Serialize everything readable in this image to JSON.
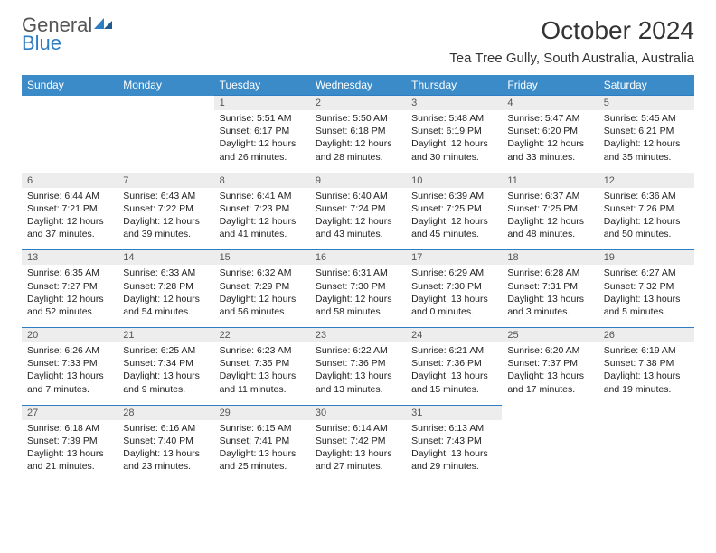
{
  "logo": {
    "text1": "General",
    "text2": "Blue"
  },
  "title": "October 2024",
  "location": "Tea Tree Gully, South Australia, Australia",
  "weekdays": [
    "Sunday",
    "Monday",
    "Tuesday",
    "Wednesday",
    "Thursday",
    "Friday",
    "Saturday"
  ],
  "colors": {
    "headerBg": "#3b8bc9",
    "dayBg": "#ededed",
    "accent": "#2e7cc2"
  },
  "weeks": [
    [
      null,
      null,
      {
        "n": "1",
        "sunrise": "5:51 AM",
        "sunset": "6:17 PM",
        "daylight": "12 hours and 26 minutes."
      },
      {
        "n": "2",
        "sunrise": "5:50 AM",
        "sunset": "6:18 PM",
        "daylight": "12 hours and 28 minutes."
      },
      {
        "n": "3",
        "sunrise": "5:48 AM",
        "sunset": "6:19 PM",
        "daylight": "12 hours and 30 minutes."
      },
      {
        "n": "4",
        "sunrise": "5:47 AM",
        "sunset": "6:20 PM",
        "daylight": "12 hours and 33 minutes."
      },
      {
        "n": "5",
        "sunrise": "5:45 AM",
        "sunset": "6:21 PM",
        "daylight": "12 hours and 35 minutes."
      }
    ],
    [
      {
        "n": "6",
        "sunrise": "6:44 AM",
        "sunset": "7:21 PM",
        "daylight": "12 hours and 37 minutes."
      },
      {
        "n": "7",
        "sunrise": "6:43 AM",
        "sunset": "7:22 PM",
        "daylight": "12 hours and 39 minutes."
      },
      {
        "n": "8",
        "sunrise": "6:41 AM",
        "sunset": "7:23 PM",
        "daylight": "12 hours and 41 minutes."
      },
      {
        "n": "9",
        "sunrise": "6:40 AM",
        "sunset": "7:24 PM",
        "daylight": "12 hours and 43 minutes."
      },
      {
        "n": "10",
        "sunrise": "6:39 AM",
        "sunset": "7:25 PM",
        "daylight": "12 hours and 45 minutes."
      },
      {
        "n": "11",
        "sunrise": "6:37 AM",
        "sunset": "7:25 PM",
        "daylight": "12 hours and 48 minutes."
      },
      {
        "n": "12",
        "sunrise": "6:36 AM",
        "sunset": "7:26 PM",
        "daylight": "12 hours and 50 minutes."
      }
    ],
    [
      {
        "n": "13",
        "sunrise": "6:35 AM",
        "sunset": "7:27 PM",
        "daylight": "12 hours and 52 minutes."
      },
      {
        "n": "14",
        "sunrise": "6:33 AM",
        "sunset": "7:28 PM",
        "daylight": "12 hours and 54 minutes."
      },
      {
        "n": "15",
        "sunrise": "6:32 AM",
        "sunset": "7:29 PM",
        "daylight": "12 hours and 56 minutes."
      },
      {
        "n": "16",
        "sunrise": "6:31 AM",
        "sunset": "7:30 PM",
        "daylight": "12 hours and 58 minutes."
      },
      {
        "n": "17",
        "sunrise": "6:29 AM",
        "sunset": "7:30 PM",
        "daylight": "13 hours and 0 minutes."
      },
      {
        "n": "18",
        "sunrise": "6:28 AM",
        "sunset": "7:31 PM",
        "daylight": "13 hours and 3 minutes."
      },
      {
        "n": "19",
        "sunrise": "6:27 AM",
        "sunset": "7:32 PM",
        "daylight": "13 hours and 5 minutes."
      }
    ],
    [
      {
        "n": "20",
        "sunrise": "6:26 AM",
        "sunset": "7:33 PM",
        "daylight": "13 hours and 7 minutes."
      },
      {
        "n": "21",
        "sunrise": "6:25 AM",
        "sunset": "7:34 PM",
        "daylight": "13 hours and 9 minutes."
      },
      {
        "n": "22",
        "sunrise": "6:23 AM",
        "sunset": "7:35 PM",
        "daylight": "13 hours and 11 minutes."
      },
      {
        "n": "23",
        "sunrise": "6:22 AM",
        "sunset": "7:36 PM",
        "daylight": "13 hours and 13 minutes."
      },
      {
        "n": "24",
        "sunrise": "6:21 AM",
        "sunset": "7:36 PM",
        "daylight": "13 hours and 15 minutes."
      },
      {
        "n": "25",
        "sunrise": "6:20 AM",
        "sunset": "7:37 PM",
        "daylight": "13 hours and 17 minutes."
      },
      {
        "n": "26",
        "sunrise": "6:19 AM",
        "sunset": "7:38 PM",
        "daylight": "13 hours and 19 minutes."
      }
    ],
    [
      {
        "n": "27",
        "sunrise": "6:18 AM",
        "sunset": "7:39 PM",
        "daylight": "13 hours and 21 minutes."
      },
      {
        "n": "28",
        "sunrise": "6:16 AM",
        "sunset": "7:40 PM",
        "daylight": "13 hours and 23 minutes."
      },
      {
        "n": "29",
        "sunrise": "6:15 AM",
        "sunset": "7:41 PM",
        "daylight": "13 hours and 25 minutes."
      },
      {
        "n": "30",
        "sunrise": "6:14 AM",
        "sunset": "7:42 PM",
        "daylight": "13 hours and 27 minutes."
      },
      {
        "n": "31",
        "sunrise": "6:13 AM",
        "sunset": "7:43 PM",
        "daylight": "13 hours and 29 minutes."
      },
      null,
      null
    ]
  ]
}
